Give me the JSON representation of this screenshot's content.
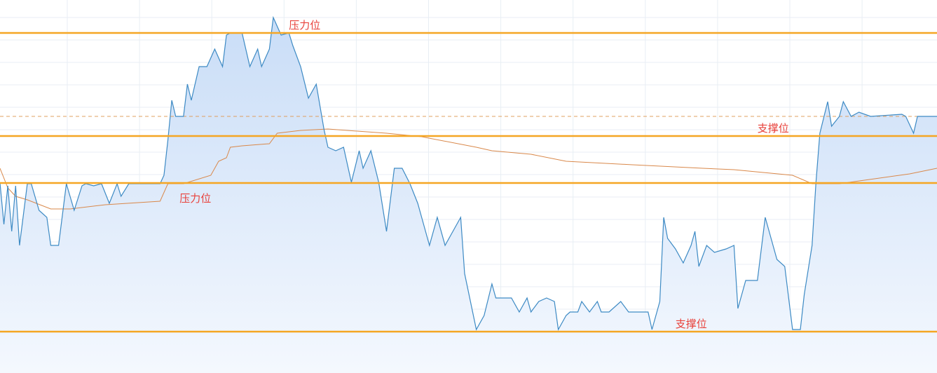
{
  "chart_data": {
    "type": "area",
    "title": "",
    "xlabel": "",
    "ylabel": "",
    "xlim": [
      0,
      240
    ],
    "ylim": [
      -2.7,
      50.5
    ],
    "grid": true,
    "colors": {
      "price_line": "#3d8ac4",
      "price_fill_top": "#c9ddf7",
      "price_fill_bottom": "#f4f8fe",
      "avg_line": "#d9884a",
      "level_line": "#f5a623",
      "prev_close_dashed": "#e0a060",
      "label_text": "#e8413b",
      "grid": "#e8eef4"
    },
    "series": [
      {
        "role": "price",
        "points": [
          [
            0,
            24.4
          ],
          [
            1,
            18.5
          ],
          [
            2,
            24.0
          ],
          [
            3,
            17.5
          ],
          [
            4,
            24.0
          ],
          [
            5,
            15.5
          ],
          [
            7,
            24.3
          ],
          [
            8,
            24.3
          ],
          [
            10,
            20.5
          ],
          [
            12,
            19.5
          ],
          [
            13,
            15.5
          ],
          [
            15,
            15.5
          ],
          [
            17,
            24.3
          ],
          [
            19,
            20.5
          ],
          [
            21,
            24.0
          ],
          [
            22,
            24.3
          ],
          [
            24,
            24.0
          ],
          [
            26,
            24.3
          ],
          [
            28,
            21.5
          ],
          [
            30,
            24.3
          ],
          [
            31,
            22.5
          ],
          [
            33,
            24.3
          ],
          [
            37,
            24.3
          ],
          [
            41,
            24.3
          ],
          [
            42,
            25.5
          ],
          [
            43,
            30.5
          ],
          [
            44,
            36.2
          ],
          [
            45,
            33.9
          ],
          [
            47,
            33.9
          ],
          [
            48,
            38.5
          ],
          [
            49,
            36.2
          ],
          [
            51,
            41.0
          ],
          [
            53,
            41.0
          ],
          [
            55,
            43.5
          ],
          [
            57,
            41.0
          ],
          [
            58,
            45.5
          ],
          [
            59,
            45.8
          ],
          [
            62,
            45.8
          ],
          [
            64,
            41.0
          ],
          [
            66,
            43.5
          ],
          [
            67,
            41.0
          ],
          [
            69,
            43.5
          ],
          [
            70,
            48.0
          ],
          [
            72,
            45.5
          ],
          [
            74,
            45.8
          ],
          [
            75,
            44.0
          ],
          [
            77,
            41.0
          ],
          [
            79,
            36.5
          ],
          [
            81,
            38.5
          ],
          [
            83,
            32.0
          ],
          [
            84,
            29.5
          ],
          [
            86,
            29.0
          ],
          [
            88,
            29.5
          ],
          [
            90,
            24.5
          ],
          [
            92,
            29.0
          ],
          [
            93,
            26.5
          ],
          [
            95,
            29.0
          ],
          [
            97,
            24.5
          ],
          [
            99,
            17.5
          ],
          [
            101,
            26.5
          ],
          [
            103,
            26.5
          ],
          [
            105,
            24.3
          ],
          [
            107,
            21.5
          ],
          [
            109,
            17.5
          ],
          [
            110,
            15.5
          ],
          [
            112,
            19.5
          ],
          [
            114,
            15.5
          ],
          [
            116,
            17.5
          ],
          [
            118,
            19.5
          ],
          [
            119,
            11.5
          ],
          [
            122,
            3.5
          ],
          [
            124,
            5.5
          ],
          [
            126,
            10.0
          ],
          [
            127,
            8.0
          ],
          [
            131,
            8.0
          ],
          [
            133,
            6.0
          ],
          [
            135,
            8.0
          ],
          [
            136,
            6.0
          ],
          [
            138,
            7.5
          ],
          [
            140,
            8.0
          ],
          [
            142,
            7.5
          ],
          [
            143,
            3.5
          ],
          [
            145,
            5.5
          ],
          [
            146,
            6.0
          ],
          [
            148,
            6.0
          ],
          [
            149,
            7.5
          ],
          [
            151,
            6.0
          ],
          [
            153,
            7.5
          ],
          [
            154,
            6.0
          ],
          [
            156,
            6.0
          ],
          [
            159,
            7.5
          ],
          [
            161,
            6.0
          ],
          [
            166,
            6.0
          ],
          [
            167,
            3.5
          ],
          [
            169,
            7.5
          ],
          [
            170,
            19.5
          ],
          [
            171,
            16.5
          ],
          [
            173,
            15.0
          ],
          [
            175,
            13.0
          ],
          [
            177,
            15.5
          ],
          [
            178,
            17.5
          ],
          [
            179,
            12.5
          ],
          [
            181,
            15.5
          ],
          [
            183,
            14.5
          ],
          [
            186,
            15.0
          ],
          [
            188,
            15.5
          ],
          [
            189,
            6.5
          ],
          [
            191,
            10.5
          ],
          [
            194,
            10.5
          ],
          [
            196,
            19.5
          ],
          [
            197,
            17.5
          ],
          [
            199,
            13.5
          ],
          [
            201,
            12.5
          ],
          [
            203,
            3.5
          ],
          [
            205,
            3.5
          ],
          [
            206,
            8.5
          ],
          [
            208,
            15.5
          ],
          [
            209,
            24.5
          ],
          [
            210,
            31.5
          ],
          [
            212,
            36.0
          ],
          [
            213,
            32.5
          ],
          [
            215,
            33.9
          ],
          [
            216,
            36.0
          ],
          [
            218,
            33.9
          ],
          [
            220,
            34.5
          ],
          [
            223,
            33.9
          ],
          [
            231,
            34.2
          ],
          [
            232,
            33.9
          ],
          [
            234,
            31.5
          ],
          [
            235,
            33.9
          ],
          [
            240,
            33.9
          ]
        ]
      },
      {
        "role": "average",
        "points": [
          [
            0,
            26.5
          ],
          [
            2,
            23.7
          ],
          [
            4,
            22.5
          ],
          [
            7,
            22.0
          ],
          [
            13,
            20.7
          ],
          [
            18,
            20.7
          ],
          [
            27,
            21.3
          ],
          [
            41,
            21.8
          ],
          [
            43,
            24.3
          ],
          [
            47,
            24.3
          ],
          [
            54,
            25.5
          ],
          [
            56,
            27.5
          ],
          [
            58,
            28.0
          ],
          [
            59,
            29.5
          ],
          [
            62,
            29.7
          ],
          [
            69,
            30.0
          ],
          [
            71,
            31.5
          ],
          [
            77,
            31.9
          ],
          [
            84,
            32.1
          ],
          [
            99,
            31.5
          ],
          [
            108,
            31.0
          ],
          [
            122,
            29.5
          ],
          [
            126,
            29.0
          ],
          [
            136,
            28.5
          ],
          [
            145,
            27.5
          ],
          [
            162,
            27.0
          ],
          [
            180,
            26.5
          ],
          [
            188,
            26.3
          ],
          [
            203,
            25.5
          ],
          [
            208,
            24.3
          ],
          [
            215,
            24.3
          ],
          [
            224,
            25.0
          ],
          [
            233,
            25.7
          ],
          [
            240,
            26.5
          ]
        ]
      }
    ],
    "prev_close": 33.9,
    "levels": [
      {
        "label": "压力位",
        "value": 45.8,
        "label_x": 74,
        "label_side": "above"
      },
      {
        "label": "支撑位",
        "value": 31.1,
        "label_x": 194,
        "label_side": "above"
      },
      {
        "label": "压力位",
        "value": 24.4,
        "label_x": 46,
        "label_side": "below"
      },
      {
        "label": "支撑位",
        "value": 3.2,
        "label_x": 173,
        "label_side": "above"
      }
    ]
  }
}
